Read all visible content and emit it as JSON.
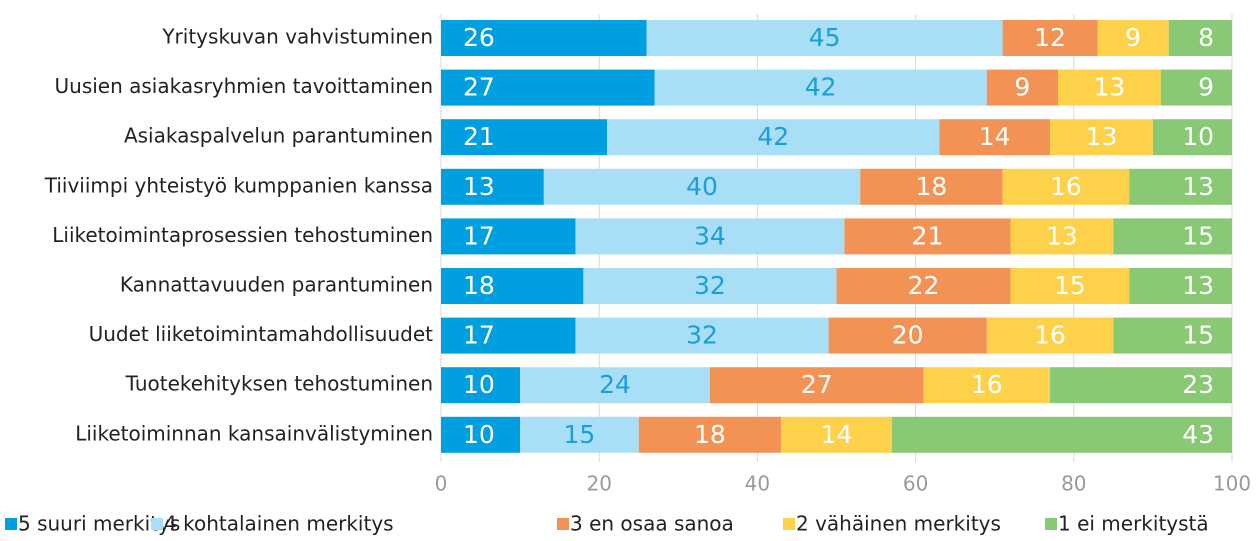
{
  "chart_data": {
    "type": "stacked_barh",
    "categories": [
      "Yrityskuvan vahvistuminen",
      "Uusien asiakasryhmien tavoittaminen",
      "Asiakaspalvelun parantuminen",
      "Tiiviimpi yhteistyö kumppanien kanssa",
      "Liiketoimintaprosessien tehostuminen",
      "Kannattavuuden parantuminen",
      "Uudet liiketoimintamahdollisuudet",
      "Tuotekehityksen tehostuminen",
      "Liiketoiminnan kansainvälistyminen"
    ],
    "series": [
      {
        "name": "5 suuri merkitys",
        "color": "#009fdf",
        "values": [
          26,
          27,
          21,
          13,
          17,
          18,
          17,
          10,
          10
        ]
      },
      {
        "name": "4 kohtalainen merkitys",
        "color": "#a9def7",
        "values": [
          45,
          42,
          42,
          40,
          34,
          32,
          32,
          24,
          15
        ]
      },
      {
        "name": "3 en osaa sanoa",
        "color": "#f39255",
        "values": [
          12,
          9,
          14,
          18,
          21,
          22,
          20,
          27,
          18
        ]
      },
      {
        "name": "2 vähäinen merkitys",
        "color": "#fdd24a",
        "values": [
          9,
          13,
          13,
          16,
          13,
          15,
          16,
          16,
          14
        ]
      },
      {
        "name": "1 ei merkitystä",
        "color": "#89c976",
        "values": [
          8,
          9,
          10,
          13,
          15,
          13,
          15,
          23,
          43
        ]
      }
    ],
    "xlim": [
      0,
      100
    ],
    "xticks": [
      0,
      20,
      40,
      60,
      80,
      100
    ],
    "grid": true,
    "legend": "bottom"
  }
}
